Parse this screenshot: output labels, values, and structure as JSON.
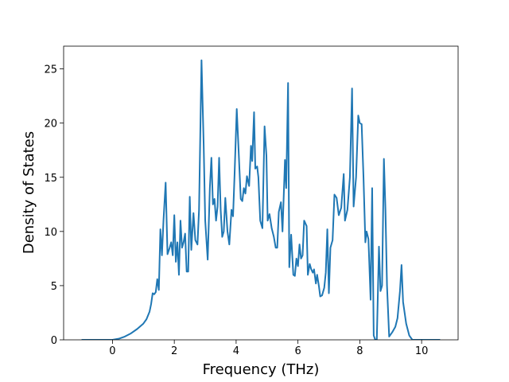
{
  "chart_data": {
    "type": "line",
    "xlabel": "Frequency (THz)",
    "ylabel": "Density of States",
    "color": "#1f77b4",
    "x": [
      -1.0,
      -0.5,
      0,
      0.2,
      0.4,
      0.6,
      0.8,
      1.0,
      1.1,
      1.2,
      1.25,
      1.3,
      1.35,
      1.4,
      1.45,
      1.5,
      1.55,
      1.6,
      1.65,
      1.72,
      1.78,
      1.85,
      1.9,
      1.95,
      2.0,
      2.05,
      2.1,
      2.15,
      2.2,
      2.25,
      2.3,
      2.35,
      2.4,
      2.45,
      2.5,
      2.55,
      2.62,
      2.68,
      2.75,
      2.8,
      2.88,
      2.95,
      3.0,
      3.08,
      3.15,
      3.2,
      3.25,
      3.3,
      3.35,
      3.4,
      3.45,
      3.5,
      3.55,
      3.6,
      3.65,
      3.72,
      3.78,
      3.85,
      3.9,
      3.95,
      4.02,
      4.08,
      4.15,
      4.2,
      4.25,
      4.3,
      4.35,
      4.42,
      4.48,
      4.52,
      4.58,
      4.62,
      4.68,
      4.72,
      4.78,
      4.85,
      4.92,
      4.98,
      5.02,
      5.08,
      5.15,
      5.22,
      5.28,
      5.33,
      5.38,
      5.45,
      5.5,
      5.58,
      5.62,
      5.68,
      5.72,
      5.78,
      5.85,
      5.9,
      5.95,
      6.0,
      6.05,
      6.1,
      6.15,
      6.2,
      6.28,
      6.32,
      6.38,
      6.43,
      6.48,
      6.52,
      6.58,
      6.62,
      6.68,
      6.72,
      6.78,
      6.85,
      6.9,
      6.95,
      7.0,
      7.05,
      7.12,
      7.18,
      7.25,
      7.32,
      7.4,
      7.48,
      7.52,
      7.6,
      7.68,
      7.75,
      7.8,
      7.88,
      7.95,
      8.0,
      8.06,
      8.12,
      8.18,
      8.22,
      8.28,
      8.35,
      8.4,
      8.45,
      8.5,
      8.55,
      8.62,
      8.67,
      8.72,
      8.78,
      8.83,
      8.88,
      8.95,
      9.05,
      9.15,
      9.22,
      9.3,
      9.35,
      9.4,
      9.5,
      9.6,
      9.7,
      10.0,
      10.6
    ],
    "values": [
      0,
      0,
      0,
      0.1,
      0.3,
      0.6,
      1.0,
      1.5,
      1.9,
      2.6,
      3.3,
      4.3,
      4.2,
      4.4,
      5.6,
      4.6,
      10.2,
      7.8,
      11.0,
      14.5,
      7.9,
      8.5,
      9.0,
      7.8,
      11.5,
      7.2,
      9.0,
      6.0,
      11.0,
      8.5,
      9.0,
      9.8,
      6.3,
      6.3,
      13.2,
      8.3,
      11.7,
      9.2,
      8.8,
      12.0,
      25.8,
      18.0,
      11.0,
      7.4,
      14.0,
      16.8,
      12.5,
      13.0,
      11.0,
      12.3,
      16.8,
      12.0,
      9.5,
      10.0,
      13.1,
      10.0,
      8.8,
      12.0,
      11.4,
      15.3,
      21.3,
      17.5,
      13.0,
      12.8,
      14.0,
      13.5,
      15.1,
      14.2,
      17.9,
      16.5,
      21.0,
      15.8,
      16.0,
      15.0,
      11.0,
      10.3,
      19.7,
      17.0,
      11.0,
      11.6,
      10.3,
      9.5,
      8.5,
      8.5,
      11.8,
      12.7,
      10.0,
      16.6,
      14.0,
      23.7,
      6.7,
      9.7,
      6.0,
      5.9,
      7.5,
      6.8,
      8.8,
      7.5,
      7.8,
      11.0,
      10.5,
      6.0,
      7.0,
      6.5,
      6.2,
      6.5,
      5.2,
      6.0,
      4.9,
      4.0,
      4.1,
      4.8,
      6.2,
      10.2,
      4.3,
      8.5,
      9.2,
      13.4,
      13.1,
      11.5,
      12.2,
      15.3,
      11.0,
      12.0,
      15.0,
      23.2,
      12.3,
      15.0,
      20.7,
      20.0,
      19.9,
      15.0,
      9.0,
      10.0,
      9.3,
      3.7,
      14.0,
      0.4,
      0,
      0,
      8.6,
      4.5,
      5.0,
      16.7,
      12.0,
      5.0,
      0.3,
      0.7,
      1.2,
      2.0,
      4.5,
      6.9,
      3.5,
      1.5,
      0.4,
      0,
      0,
      0
    ],
    "xlim": [
      -1.58,
      11.18
    ],
    "ylim": [
      0,
      27.1
    ],
    "xticks": [
      0,
      2,
      4,
      6,
      8,
      10
    ],
    "yticks": [
      0,
      5,
      10,
      15,
      20,
      25
    ]
  }
}
